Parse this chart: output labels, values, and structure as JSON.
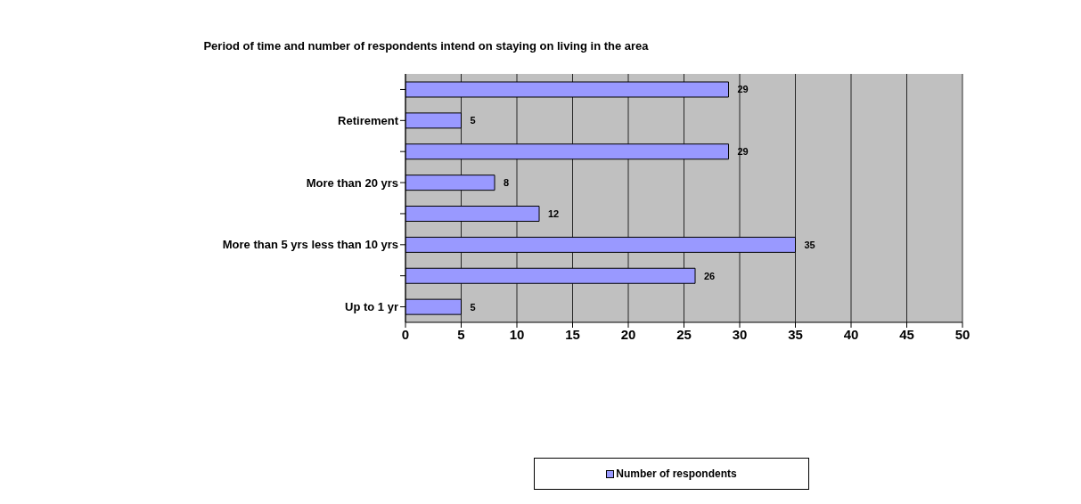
{
  "chart_data": {
    "type": "bar",
    "orientation": "horizontal",
    "title": "Period of time and number of respondents intend on staying on living in the area",
    "categories": [
      null,
      "Retirement",
      null,
      "More than 20 yrs",
      null,
      "More than 5 yrs less than 10 yrs",
      null,
      "Up to 1 yr"
    ],
    "series": [
      {
        "name": "Number of respondents",
        "color": "#9999ff",
        "values": [
          29,
          5,
          29,
          8,
          12,
          35,
          26,
          5
        ]
      }
    ],
    "xlim": [
      0,
      50
    ],
    "xticks": [
      0,
      5,
      10,
      15,
      20,
      25,
      30,
      35,
      40,
      45,
      50
    ],
    "grid": "x",
    "legend": "bottom",
    "data_labels": true
  }
}
